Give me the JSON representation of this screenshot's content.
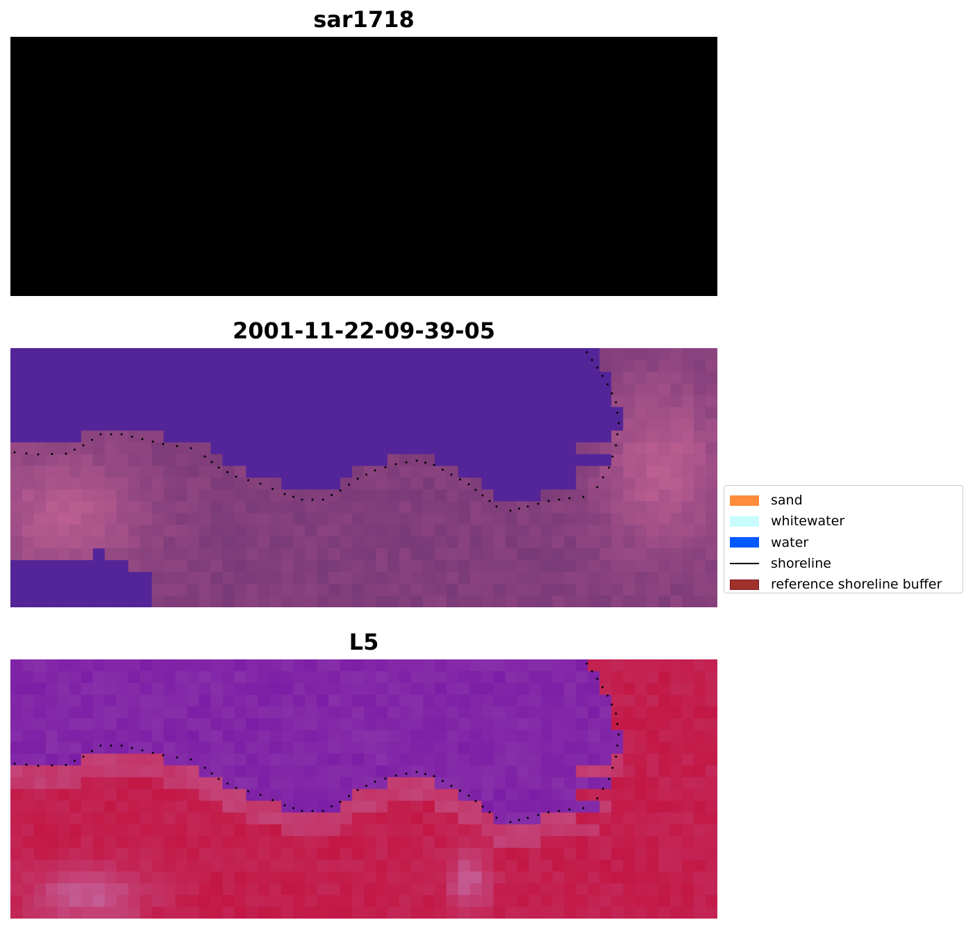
{
  "panels": [
    {
      "title": "sar1718",
      "image_type": "rgb-composite"
    },
    {
      "title": "2001-11-22-09-39-05",
      "image_type": "classified"
    },
    {
      "title": "L5",
      "image_type": "index"
    }
  ],
  "legend": {
    "items": [
      {
        "label": "sand",
        "color": "#ff8c3a",
        "kind": "patch"
      },
      {
        "label": "whitewater",
        "color": "#c8fcfc",
        "kind": "patch"
      },
      {
        "label": "water",
        "color": "#0059ff",
        "kind": "patch"
      },
      {
        "label": "shoreline",
        "color": "#000000",
        "kind": "line"
      },
      {
        "label": "reference shoreline buffer",
        "color": "#a0302a",
        "kind": "patch"
      }
    ]
  },
  "colors": {
    "water_class": "#532598",
    "shoreline_dots": "#000000",
    "rgb_water": "#3e76b4",
    "rgb_whitewater": "#e8faf4",
    "index_water": "#7d1fa6",
    "index_land": "#c31745"
  }
}
